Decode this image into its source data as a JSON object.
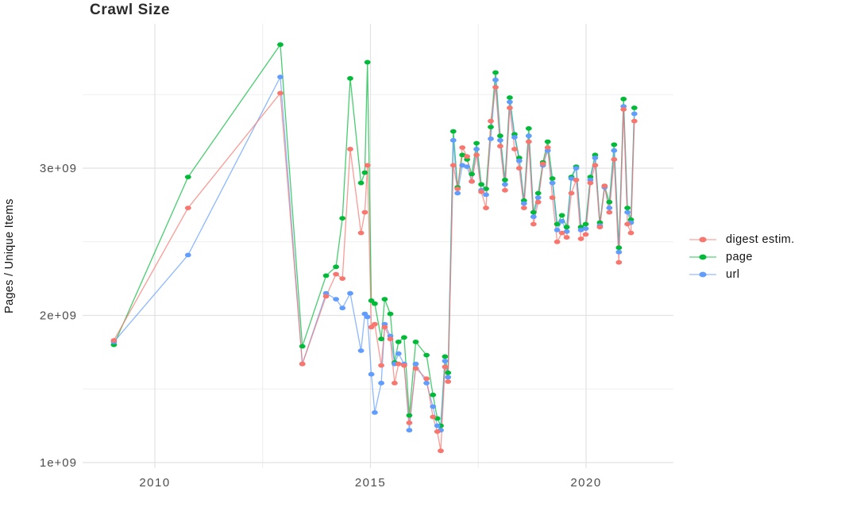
{
  "title": "Crawl Size",
  "y_axis": {
    "label": "Pages / Unique Items",
    "ticks": [
      "1e+09",
      "2e+09",
      "3e+09"
    ]
  },
  "x_axis": {
    "ticks": [
      "2010",
      "2015",
      "2020"
    ]
  },
  "legend": [
    {
      "label": "digest estim.",
      "color": "#F8766D"
    },
    {
      "label": "page",
      "color": "#00BA38"
    },
    {
      "label": "url",
      "color": "#619CFF"
    }
  ],
  "chart_data": {
    "type": "line",
    "title": "Crawl Size",
    "xlabel": "",
    "ylabel": "Pages / Unique Items",
    "grid": true,
    "legend_position": "right",
    "marker": "ellipse",
    "xlim": [
      2008.45,
      2022.0
    ],
    "ylim": [
      940000000,
      3980000000
    ],
    "x_ticks": [
      {
        "label": "2010",
        "value": 2010
      },
      {
        "label": "2015",
        "value": 2015
      },
      {
        "label": "2020",
        "value": 2020
      }
    ],
    "x_minor": [
      2012.5,
      2017.5
    ],
    "y_ticks": [
      {
        "label": "1e+09",
        "value": 1000000000.0
      },
      {
        "label": "2e+09",
        "value": 2000000000.0
      },
      {
        "label": "3e+09",
        "value": 3000000000.0
      }
    ],
    "y_minor": [
      1500000000.0,
      2500000000.0,
      3500000000.0
    ],
    "x": [
      2009.05,
      2010.77,
      2012.91,
      2013.42,
      2013.97,
      2014.2,
      2014.35,
      2014.53,
      2014.78,
      2014.87,
      2014.93,
      2015.02,
      2015.1,
      2015.25,
      2015.33,
      2015.46,
      2015.56,
      2015.65,
      2015.78,
      2015.9,
      2016.05,
      2016.3,
      2016.45,
      2016.55,
      2016.63,
      2016.73,
      2016.8,
      2016.92,
      2017.02,
      2017.13,
      2017.24,
      2017.35,
      2017.46,
      2017.57,
      2017.68,
      2017.79,
      2017.9,
      2018.01,
      2018.12,
      2018.23,
      2018.34,
      2018.45,
      2018.56,
      2018.67,
      2018.78,
      2018.89,
      2019,
      2019.11,
      2019.22,
      2019.33,
      2019.44,
      2019.55,
      2019.66,
      2019.77,
      2019.88,
      2019.99,
      2020.1,
      2020.21,
      2020.32,
      2020.43,
      2020.54,
      2020.65,
      2020.76,
      2020.87,
      2020.96,
      2021.04,
      2021.12
    ],
    "series": [
      {
        "name": "page",
        "color": "#00BA38",
        "values": [
          1800000000.0,
          2940000000.0,
          3840000000.0,
          1790000000.0,
          2270000000.0,
          2330000000.0,
          2660000000.0,
          3610000000.0,
          2900000000.0,
          2970000000.0,
          3720000000.0,
          2100000000.0,
          2080000000.0,
          1840000000.0,
          2110000000.0,
          2010000000.0,
          1680000000.0,
          1820000000.0,
          1850000000.0,
          1320000000.0,
          1820000000.0,
          1730000000.0,
          1460000000.0,
          1300000000.0,
          1250000000.0,
          1720000000.0,
          1610000000.0,
          3250000000.0,
          2870000000.0,
          3090000000.0,
          3060000000.0,
          2960000000.0,
          3170000000.0,
          2890000000.0,
          2860000000.0,
          3280000000.0,
          3650000000.0,
          3220000000.0,
          2920000000.0,
          3480000000.0,
          3230000000.0,
          3070000000.0,
          2780000000.0,
          3270000000.0,
          2700000000.0,
          2830000000.0,
          3040000000.0,
          3180000000.0,
          2930000000.0,
          2620000000.0,
          2680000000.0,
          2600000000.0,
          2940000000.0,
          3010000000.0,
          2600000000.0,
          2620000000.0,
          2940000000.0,
          3090000000.0,
          2630000000.0,
          2880000000.0,
          2770000000.0,
          3160000000.0,
          2460000000.0,
          3470000000.0,
          2730000000.0,
          2650000000.0,
          3410000000.0
        ]
      },
      {
        "name": "url",
        "color": "#619CFF",
        "values": [
          1820000000.0,
          2410000000.0,
          3620000000.0,
          1670000000.0,
          2150000000.0,
          2110000000.0,
          2050000000.0,
          2150000000.0,
          1760000000.0,
          2010000000.0,
          1990000000.0,
          1600000000.0,
          1340000000.0,
          1540000000.0,
          1940000000.0,
          1860000000.0,
          1670000000.0,
          1740000000.0,
          1670000000.0,
          1220000000.0,
          1670000000.0,
          1540000000.0,
          1380000000.0,
          1250000000.0,
          1220000000.0,
          1690000000.0,
          1580000000.0,
          3190000000.0,
          2830000000.0,
          3020000000.0,
          3010000000.0,
          2910000000.0,
          3130000000.0,
          2850000000.0,
          2820000000.0,
          3200000000.0,
          3600000000.0,
          3190000000.0,
          2890000000.0,
          3450000000.0,
          3210000000.0,
          3050000000.0,
          2760000000.0,
          3220000000.0,
          2670000000.0,
          2800000000.0,
          3020000000.0,
          3120000000.0,
          2900000000.0,
          2580000000.0,
          2640000000.0,
          2570000000.0,
          2930000000.0,
          3000000000.0,
          2580000000.0,
          2590000000.0,
          2920000000.0,
          3070000000.0,
          2610000000.0,
          2870000000.0,
          2730000000.0,
          3120000000.0,
          2430000000.0,
          3420000000.0,
          2700000000.0,
          2630000000.0,
          3370000000.0
        ]
      },
      {
        "name": "digest estim.",
        "color": "#F8766D",
        "values": [
          1830000000.0,
          2730000000.0,
          3510000000.0,
          1670000000.0,
          2130000000.0,
          2280000000.0,
          2250000000.0,
          3130000000.0,
          2560000000.0,
          2700000000.0,
          3020000000.0,
          1920000000.0,
          1940000000.0,
          1660000000.0,
          1920000000.0,
          1840000000.0,
          1540000000.0,
          1670000000.0,
          1660000000.0,
          1270000000.0,
          1640000000.0,
          1570000000.0,
          1310000000.0,
          1210000000.0,
          1080000000.0,
          1650000000.0,
          1550000000.0,
          3020000000.0,
          2860000000.0,
          3140000000.0,
          3080000000.0,
          2910000000.0,
          3090000000.0,
          2840000000.0,
          2730000000.0,
          3320000000.0,
          3550000000.0,
          3150000000.0,
          2850000000.0,
          3410000000.0,
          3130000000.0,
          3000000000.0,
          2730000000.0,
          3180000000.0,
          2620000000.0,
          2770000000.0,
          3030000000.0,
          3140000000.0,
          2800000000.0,
          2500000000.0,
          2560000000.0,
          2530000000.0,
          2830000000.0,
          2920000000.0,
          2520000000.0,
          2550000000.0,
          2900000000.0,
          3020000000.0,
          2600000000.0,
          2880000000.0,
          2700000000.0,
          3060000000.0,
          2360000000.0,
          3400000000.0,
          2620000000.0,
          2560000000.0,
          3320000000.0
        ]
      }
    ]
  }
}
